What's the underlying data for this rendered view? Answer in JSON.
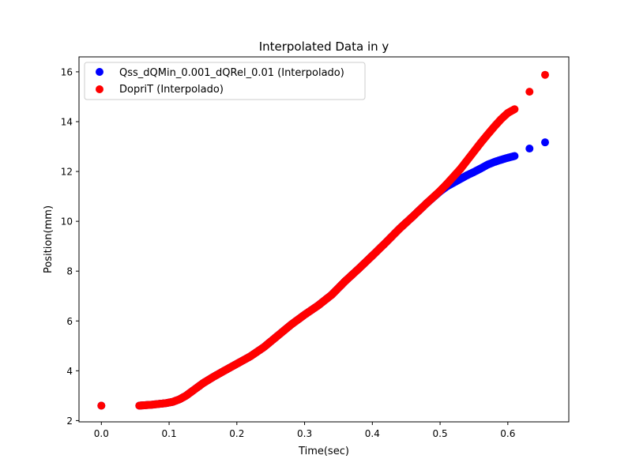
{
  "chart_data": {
    "type": "scatter",
    "title": "Interpolated Data in y",
    "xlabel": "Time(sec)",
    "ylabel": "Position(mm)",
    "xlim": [
      -0.033,
      0.69
    ],
    "ylim": [
      1.95,
      16.6
    ],
    "xticks": [
      0.0,
      0.1,
      0.2,
      0.3,
      0.4,
      0.5,
      0.6
    ],
    "xtick_labels": [
      "0.0",
      "0.1",
      "0.2",
      "0.3",
      "0.4",
      "0.5",
      "0.6"
    ],
    "yticks": [
      2,
      4,
      6,
      8,
      10,
      12,
      14,
      16
    ],
    "ytick_labels": [
      "2",
      "4",
      "6",
      "8",
      "10",
      "12",
      "14",
      "16"
    ],
    "grid": false,
    "legend_position": "upper-left",
    "series": [
      {
        "name": "Qss_dQMin_0.001_dQRel_0.01 (Interpolado)",
        "color": "#0000ff",
        "points": [
          [
            0.0,
            2.6
          ],
          [
            0.056,
            2.6
          ],
          [
            0.065,
            2.62
          ],
          [
            0.075,
            2.64
          ],
          [
            0.085,
            2.67
          ],
          [
            0.095,
            2.7
          ],
          [
            0.105,
            2.75
          ],
          [
            0.115,
            2.85
          ],
          [
            0.125,
            3.0
          ],
          [
            0.135,
            3.2
          ],
          [
            0.15,
            3.5
          ],
          [
            0.165,
            3.75
          ],
          [
            0.18,
            3.98
          ],
          [
            0.2,
            4.28
          ],
          [
            0.22,
            4.58
          ],
          [
            0.24,
            4.95
          ],
          [
            0.26,
            5.4
          ],
          [
            0.28,
            5.85
          ],
          [
            0.3,
            6.25
          ],
          [
            0.32,
            6.62
          ],
          [
            0.34,
            7.05
          ],
          [
            0.36,
            7.6
          ],
          [
            0.38,
            8.1
          ],
          [
            0.4,
            8.62
          ],
          [
            0.42,
            9.15
          ],
          [
            0.44,
            9.7
          ],
          [
            0.46,
            10.2
          ],
          [
            0.48,
            10.72
          ],
          [
            0.5,
            11.2
          ],
          [
            0.51,
            11.4
          ],
          [
            0.52,
            11.55
          ],
          [
            0.53,
            11.7
          ],
          [
            0.54,
            11.85
          ],
          [
            0.55,
            11.98
          ],
          [
            0.56,
            12.12
          ],
          [
            0.57,
            12.27
          ],
          [
            0.58,
            12.38
          ],
          [
            0.59,
            12.47
          ],
          [
            0.6,
            12.55
          ],
          [
            0.61,
            12.62
          ],
          [
            0.632,
            12.92
          ],
          [
            0.655,
            13.17
          ]
        ]
      },
      {
        "name": "DopriT (Interpolado)",
        "color": "#ff0000",
        "points": [
          [
            0.0,
            2.6
          ],
          [
            0.056,
            2.6
          ],
          [
            0.065,
            2.62
          ],
          [
            0.075,
            2.64
          ],
          [
            0.085,
            2.67
          ],
          [
            0.095,
            2.7
          ],
          [
            0.105,
            2.75
          ],
          [
            0.115,
            2.85
          ],
          [
            0.125,
            3.0
          ],
          [
            0.135,
            3.2
          ],
          [
            0.15,
            3.5
          ],
          [
            0.165,
            3.75
          ],
          [
            0.18,
            3.98
          ],
          [
            0.2,
            4.28
          ],
          [
            0.22,
            4.58
          ],
          [
            0.24,
            4.95
          ],
          [
            0.26,
            5.4
          ],
          [
            0.28,
            5.85
          ],
          [
            0.3,
            6.25
          ],
          [
            0.32,
            6.62
          ],
          [
            0.34,
            7.05
          ],
          [
            0.36,
            7.6
          ],
          [
            0.38,
            8.1
          ],
          [
            0.4,
            8.62
          ],
          [
            0.42,
            9.15
          ],
          [
            0.44,
            9.7
          ],
          [
            0.46,
            10.2
          ],
          [
            0.48,
            10.72
          ],
          [
            0.5,
            11.22
          ],
          [
            0.51,
            11.5
          ],
          [
            0.52,
            11.8
          ],
          [
            0.53,
            12.1
          ],
          [
            0.54,
            12.45
          ],
          [
            0.55,
            12.8
          ],
          [
            0.56,
            13.15
          ],
          [
            0.57,
            13.48
          ],
          [
            0.58,
            13.8
          ],
          [
            0.59,
            14.1
          ],
          [
            0.6,
            14.35
          ],
          [
            0.61,
            14.5
          ],
          [
            0.632,
            15.2
          ],
          [
            0.655,
            15.88
          ]
        ]
      }
    ]
  }
}
